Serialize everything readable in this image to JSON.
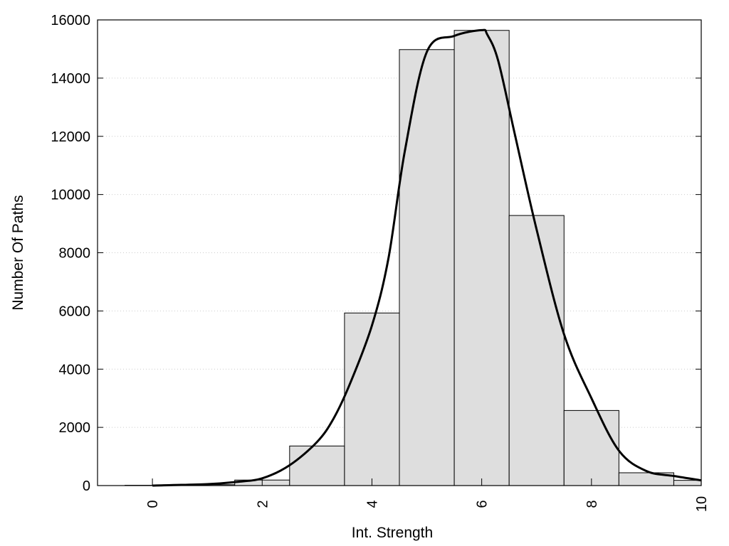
{
  "chart_data": {
    "type": "bar",
    "title": "",
    "xlabel": "Int. Strength",
    "ylabel": "Number Of Paths",
    "xlim": [
      -1,
      10
    ],
    "ylim": [
      0,
      16000
    ],
    "grid": "horizontal-dotted",
    "x_ticks": [
      0,
      2,
      4,
      6,
      8,
      10
    ],
    "x_tick_labels": [
      "0",
      "2",
      "4",
      "6",
      "8",
      "10"
    ],
    "y_ticks": [
      0,
      2000,
      4000,
      6000,
      8000,
      10000,
      12000,
      14000,
      16000
    ],
    "y_tick_labels": [
      "0",
      "2000",
      "4000",
      "6000",
      "8000",
      "10000",
      "12000",
      "14000",
      "16000"
    ],
    "bins": [
      {
        "x": 0,
        "value": 10
      },
      {
        "x": 1,
        "value": 30
      },
      {
        "x": 2,
        "value": 190
      },
      {
        "x": 3,
        "value": 1360
      },
      {
        "x": 4,
        "value": 5930
      },
      {
        "x": 5,
        "value": 14980
      },
      {
        "x": 6,
        "value": 15640
      },
      {
        "x": 7,
        "value": 9280
      },
      {
        "x": 8,
        "value": 2580
      },
      {
        "x": 9,
        "value": 440
      },
      {
        "x": 10,
        "value": 180
      }
    ],
    "bin_width": 1,
    "curve": {
      "x": [
        0,
        1,
        1.5,
        2,
        2.5,
        3,
        3.3,
        3.6,
        4,
        4.3,
        4.6,
        5,
        5.5,
        6,
        6.1,
        6.3,
        6.6,
        7,
        7.5,
        8,
        8.5,
        9,
        9.5,
        10
      ],
      "y": [
        0,
        50,
        120,
        250,
        700,
        1500,
        2300,
        3500,
        5500,
        7800,
        11500,
        14900,
        15450,
        15650,
        15500,
        14600,
        12100,
        8800,
        5200,
        3000,
        1200,
        500,
        330,
        180
      ]
    },
    "colors": {
      "bar_fill": "#dedede",
      "bar_stroke": "#000000",
      "curve": "#000000",
      "grid": "#cccccc"
    }
  }
}
